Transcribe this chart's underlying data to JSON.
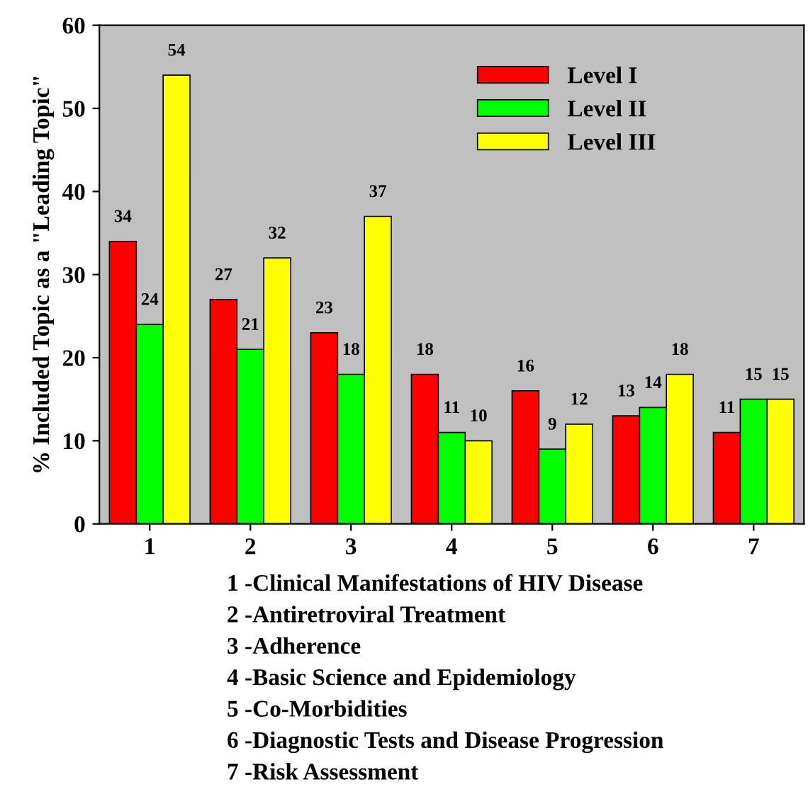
{
  "chart_data": {
    "type": "bar",
    "ylabel": "% Included Topic as a \"Leading Topic\"",
    "categories": [
      "1",
      "2",
      "3",
      "4",
      "5",
      "6",
      "7"
    ],
    "series": [
      {
        "name": "Level I",
        "color": "#ff0000",
        "values": [
          34,
          27,
          23,
          18,
          16,
          13,
          11
        ]
      },
      {
        "name": "Level II",
        "color": "#00ff00",
        "values": [
          24,
          21,
          18,
          11,
          9,
          14,
          15
        ]
      },
      {
        "name": "Level III",
        "color": "#ffff00",
        "values": [
          54,
          32,
          37,
          10,
          12,
          18,
          15
        ]
      }
    ],
    "ylim": [
      0,
      60
    ],
    "yticks": [
      0,
      10,
      20,
      30,
      40,
      50,
      60
    ],
    "data_labels": true,
    "legend": "top right",
    "grid": false,
    "annotations": [
      "1 -Clinical Manifestations of HIV Disease",
      "2 -Antiretroviral Treatment",
      "3 -Adherence",
      "4 -Basic Science and Epidemiology",
      "5 -Co-Morbidities",
      "6 -Diagnostic Tests and Disease Progression",
      "7 -Risk Assessment"
    ]
  }
}
